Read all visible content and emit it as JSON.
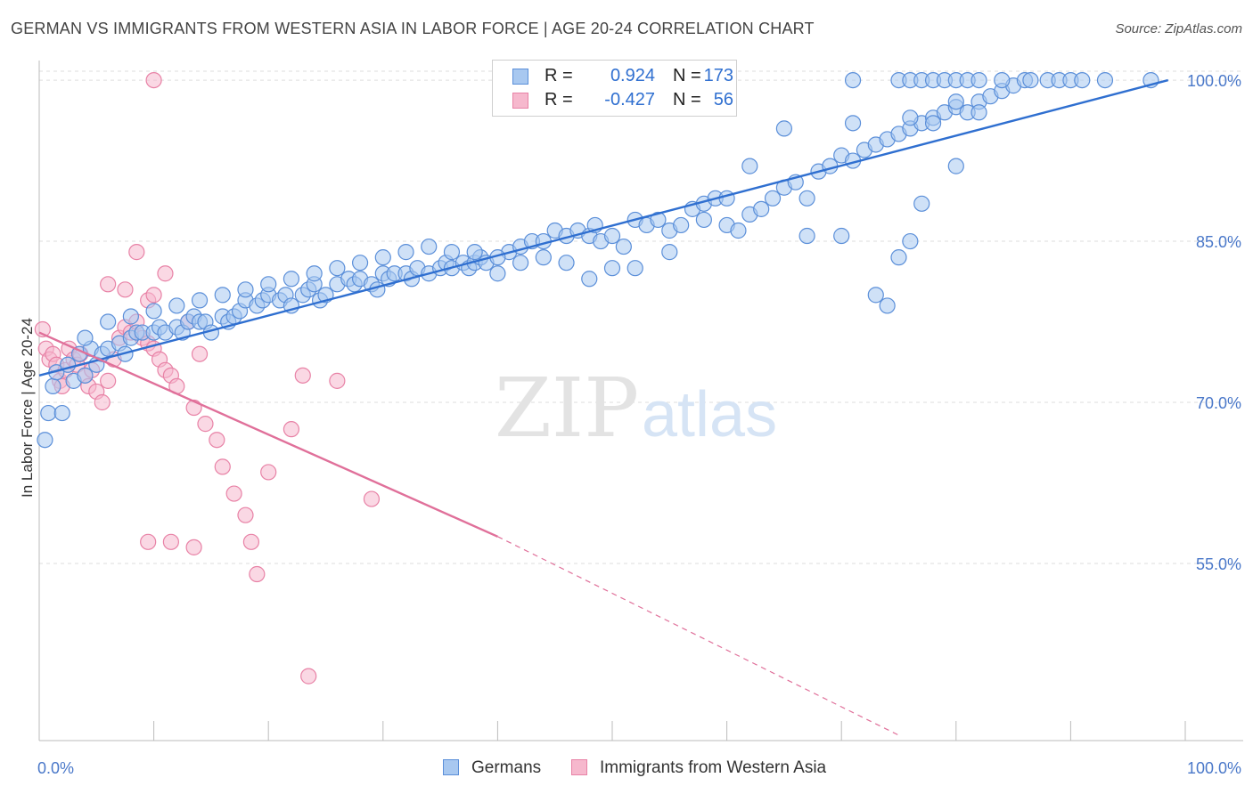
{
  "header": {
    "title": "GERMAN VS IMMIGRANTS FROM WESTERN ASIA IN LABOR FORCE | AGE 20-24 CORRELATION CHART",
    "source": "Source: ZipAtlas.com"
  },
  "watermark": {
    "zip": "ZIP",
    "atlas": "atlas"
  },
  "legend": {
    "r_label": "R =",
    "n_label": "N =",
    "items": [
      {
        "name": "Germans",
        "r": "0.924",
        "n": "173"
      },
      {
        "name": "Immigrants from Western Asia",
        "r": "-0.427",
        "n": "56"
      }
    ]
  },
  "colors": {
    "blue_fill": "#a8c8f0",
    "blue_stroke": "#5b8fd9",
    "blue_line": "#2f6fd0",
    "pink_fill": "#f6b8cd",
    "pink_stroke": "#e882a6",
    "pink_line": "#e0709a",
    "axis_text": "#4a78c9",
    "grid": "#dddddd"
  },
  "chart_data": {
    "type": "scatter",
    "ylabel": "In Labor Force | Age 20-24",
    "xlabel": "",
    "xlim": [
      0,
      100
    ],
    "ylim": [
      38.5,
      101.5
    ],
    "x_tick_labels": [
      "0.0%",
      "100.0%"
    ],
    "y_ticks": [
      55,
      70,
      85,
      100
    ],
    "y_tick_labels": [
      "55.0%",
      "70.0%",
      "85.0%",
      "100.0%"
    ],
    "grid": true,
    "series": [
      {
        "name": "Germans",
        "r": 0.924,
        "n": 173,
        "trend": {
          "x0": 0,
          "y0": 72.5,
          "x1": 98.5,
          "y1": 100,
          "style": "solid"
        },
        "points": [
          [
            0.5,
            66.5
          ],
          [
            0.8,
            69
          ],
          [
            1.2,
            71.5
          ],
          [
            1.5,
            72.8
          ],
          [
            2,
            69
          ],
          [
            2.5,
            73.5
          ],
          [
            3,
            72
          ],
          [
            3.5,
            74.5
          ],
          [
            4,
            72.5
          ],
          [
            4.5,
            75
          ],
          [
            5,
            73.5
          ],
          [
            5.5,
            74.5
          ],
          [
            6,
            75
          ],
          [
            7,
            75.5
          ],
          [
            7.5,
            74.5
          ],
          [
            8,
            76
          ],
          [
            8.5,
            76.5
          ],
          [
            9,
            76.5
          ],
          [
            10,
            76.5
          ],
          [
            10.5,
            77
          ],
          [
            11,
            76.5
          ],
          [
            12,
            77
          ],
          [
            12.5,
            76.5
          ],
          [
            13,
            77.5
          ],
          [
            13.5,
            78
          ],
          [
            14,
            77.5
          ],
          [
            14.5,
            77.5
          ],
          [
            15,
            76.5
          ],
          [
            16,
            78
          ],
          [
            16.5,
            77.5
          ],
          [
            17,
            78
          ],
          [
            17.5,
            78.5
          ],
          [
            18,
            79.5
          ],
          [
            19,
            79
          ],
          [
            19.5,
            79.5
          ],
          [
            20,
            80
          ],
          [
            21,
            79.5
          ],
          [
            21.5,
            80
          ],
          [
            22,
            79
          ],
          [
            23,
            80
          ],
          [
            23.5,
            80.5
          ],
          [
            24,
            81
          ],
          [
            24.5,
            79.5
          ],
          [
            25,
            80
          ],
          [
            26,
            81
          ],
          [
            27,
            81.5
          ],
          [
            27.5,
            81
          ],
          [
            28,
            81.5
          ],
          [
            29,
            81
          ],
          [
            29.5,
            80.5
          ],
          [
            30,
            82
          ],
          [
            30.5,
            81.5
          ],
          [
            31,
            82
          ],
          [
            32,
            82
          ],
          [
            32.5,
            81.5
          ],
          [
            33,
            82.5
          ],
          [
            34,
            82
          ],
          [
            35,
            82.5
          ],
          [
            35.5,
            83
          ],
          [
            36,
            82.5
          ],
          [
            37,
            83
          ],
          [
            37.5,
            82.5
          ],
          [
            38,
            83
          ],
          [
            38.5,
            83.5
          ],
          [
            39,
            83
          ],
          [
            40,
            82
          ],
          [
            41,
            84
          ],
          [
            42,
            84.5
          ],
          [
            43,
            85
          ],
          [
            44,
            85
          ],
          [
            45,
            86
          ],
          [
            46,
            85.5
          ],
          [
            47,
            86
          ],
          [
            48,
            85.5
          ],
          [
            48.5,
            86.5
          ],
          [
            49,
            85
          ],
          [
            50,
            85.5
          ],
          [
            51,
            84.5
          ],
          [
            52,
            87
          ],
          [
            53,
            86.5
          ],
          [
            54,
            87
          ],
          [
            55,
            86
          ],
          [
            56,
            86.5
          ],
          [
            57,
            88
          ],
          [
            58,
            88.5
          ],
          [
            59,
            89
          ],
          [
            60,
            86.5
          ],
          [
            61,
            86
          ],
          [
            62,
            87.5
          ],
          [
            63,
            88
          ],
          [
            64,
            89
          ],
          [
            65,
            90
          ],
          [
            66,
            90.5
          ],
          [
            67,
            89
          ],
          [
            68,
            91.5
          ],
          [
            69,
            92
          ],
          [
            70,
            93
          ],
          [
            71,
            92.5
          ],
          [
            72,
            93.5
          ],
          [
            73,
            94
          ],
          [
            74,
            94.5
          ],
          [
            75,
            95
          ],
          [
            76,
            95.5
          ],
          [
            77,
            96
          ],
          [
            78,
            96.5
          ],
          [
            79,
            97
          ],
          [
            80,
            97.5
          ],
          [
            81,
            97
          ],
          [
            82,
            98
          ],
          [
            83,
            98.5
          ],
          [
            84,
            99
          ],
          [
            85,
            99.5
          ],
          [
            86,
            100
          ],
          [
            71,
            100
          ],
          [
            75,
            100
          ],
          [
            76,
            100
          ],
          [
            77,
            100
          ],
          [
            78,
            100
          ],
          [
            79,
            100
          ],
          [
            80,
            100
          ],
          [
            81,
            100
          ],
          [
            82,
            100
          ],
          [
            84,
            100
          ],
          [
            86.5,
            100
          ],
          [
            88,
            100
          ],
          [
            89,
            100
          ],
          [
            90,
            100
          ],
          [
            91,
            100
          ],
          [
            93,
            100
          ],
          [
            97,
            100
          ],
          [
            71,
            96
          ],
          [
            76,
            96.5
          ],
          [
            78,
            96
          ],
          [
            80,
            98
          ],
          [
            65,
            95.5
          ],
          [
            62,
            92
          ],
          [
            60,
            89
          ],
          [
            58,
            87
          ],
          [
            55,
            84
          ],
          [
            52,
            82.5
          ],
          [
            50,
            82.5
          ],
          [
            48,
            81.5
          ],
          [
            46,
            83
          ],
          [
            44,
            83.5
          ],
          [
            42,
            83
          ],
          [
            40,
            83.5
          ],
          [
            38,
            84
          ],
          [
            36,
            84
          ],
          [
            34,
            84.5
          ],
          [
            32,
            84
          ],
          [
            30,
            83.5
          ],
          [
            28,
            83
          ],
          [
            26,
            82.5
          ],
          [
            24,
            82
          ],
          [
            22,
            81.5
          ],
          [
            20,
            81
          ],
          [
            18,
            80.5
          ],
          [
            16,
            80
          ],
          [
            14,
            79.5
          ],
          [
            12,
            79
          ],
          [
            10,
            78.5
          ],
          [
            8,
            78
          ],
          [
            6,
            77.5
          ],
          [
            4,
            76
          ],
          [
            67,
            85.5
          ],
          [
            70,
            85.5
          ],
          [
            73,
            80
          ],
          [
            74,
            79
          ],
          [
            75,
            83.5
          ],
          [
            76,
            85
          ],
          [
            77,
            88.5
          ],
          [
            80,
            92
          ],
          [
            82,
            97
          ]
        ]
      },
      {
        "name": "Immigrants from Western Asia",
        "r": -0.427,
        "n": 56,
        "trend": {
          "x0": 0,
          "y0": 76.5,
          "x1": 40,
          "y1": 57.5,
          "x2": 75,
          "y2": 39,
          "style": "solid-then-dashed"
        },
        "points": [
          [
            0.3,
            76.8
          ],
          [
            0.6,
            75
          ],
          [
            0.9,
            74
          ],
          [
            1.2,
            74.5
          ],
          [
            1.5,
            73.5
          ],
          [
            1.8,
            72
          ],
          [
            2,
            71.5
          ],
          [
            2.3,
            73
          ],
          [
            2.6,
            75
          ],
          [
            3,
            74
          ],
          [
            3.3,
            73.5
          ],
          [
            3.6,
            74.5
          ],
          [
            4,
            72.5
          ],
          [
            4.3,
            71.5
          ],
          [
            4.6,
            73
          ],
          [
            5,
            71
          ],
          [
            5.5,
            70
          ],
          [
            6,
            72
          ],
          [
            6.5,
            74
          ],
          [
            7,
            76
          ],
          [
            7.5,
            77
          ],
          [
            8,
            76.5
          ],
          [
            8.5,
            77.5
          ],
          [
            9,
            76
          ],
          [
            9.5,
            75.5
          ],
          [
            10,
            75
          ],
          [
            10.5,
            74
          ],
          [
            11,
            73
          ],
          [
            11.5,
            72.5
          ],
          [
            12,
            71.5
          ],
          [
            6,
            81
          ],
          [
            7.5,
            80.5
          ],
          [
            8.5,
            84
          ],
          [
            9.5,
            79.5
          ],
          [
            10,
            80
          ],
          [
            11,
            82
          ],
          [
            13,
            77.5
          ],
          [
            14,
            74.5
          ],
          [
            13.5,
            69.5
          ],
          [
            14.5,
            68
          ],
          [
            15.5,
            66.5
          ],
          [
            16,
            64
          ],
          [
            17,
            61.5
          ],
          [
            18,
            59.5
          ],
          [
            18.5,
            57
          ],
          [
            19,
            54
          ],
          [
            20,
            63.5
          ],
          [
            22,
            67.5
          ],
          [
            23,
            72.5
          ],
          [
            26,
            72
          ],
          [
            29,
            61
          ],
          [
            11.5,
            57
          ],
          [
            13.5,
            56.5
          ],
          [
            9.5,
            57
          ],
          [
            23.5,
            44.5
          ],
          [
            10,
            100
          ]
        ]
      }
    ]
  }
}
